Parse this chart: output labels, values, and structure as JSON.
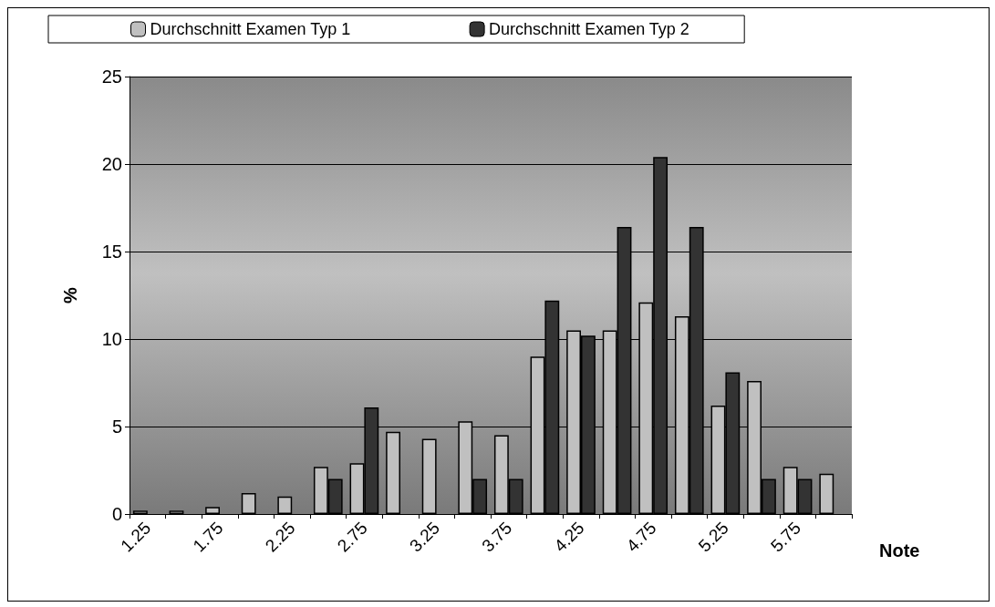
{
  "chart_data": {
    "type": "bar",
    "xlabel": "Note",
    "ylabel": "%",
    "categories": [
      "1.25",
      null,
      "1.75",
      null,
      "2.25",
      null,
      "2.75",
      null,
      "3.25",
      null,
      "3.75",
      null,
      "4.25",
      null,
      "4.75",
      null,
      "5.25",
      null,
      "5.75",
      null
    ],
    "series": [
      {
        "name": "Durchschnitt Examen Typ 1",
        "color": "#c0c0c0",
        "values": [
          0.2,
          0.2,
          0.4,
          1.2,
          1.0,
          2.7,
          2.9,
          4.7,
          4.3,
          5.3,
          4.5,
          9.0,
          10.5,
          10.5,
          12.1,
          11.3,
          6.2,
          7.6,
          2.7,
          2.3
        ]
      },
      {
        "name": "Durchschnitt Examen Typ 2",
        "color": "#333333",
        "values": [
          null,
          null,
          null,
          null,
          null,
          2.0,
          6.1,
          null,
          null,
          2.0,
          2.0,
          12.2,
          10.2,
          16.4,
          20.4,
          16.4,
          8.1,
          2.0,
          2.0,
          null
        ]
      }
    ],
    "ylim": [
      0,
      25
    ],
    "yticks": [
      0,
      5,
      10,
      15,
      20,
      25
    ],
    "grid": "y",
    "legend": "top"
  }
}
